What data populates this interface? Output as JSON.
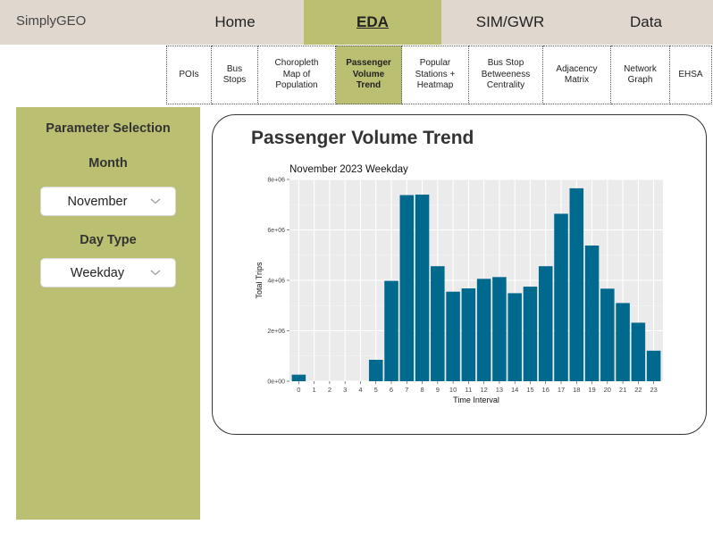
{
  "app": {
    "brand": "SimplyGEO"
  },
  "nav": {
    "items": [
      {
        "label": "Home",
        "active": false
      },
      {
        "label": "EDA",
        "active": true
      },
      {
        "label": "SIM/GWR",
        "active": false
      },
      {
        "label": "Data",
        "active": false
      }
    ]
  },
  "subtabs": [
    {
      "label": "POIs",
      "active": false
    },
    {
      "label": "Bus\nStops",
      "active": false
    },
    {
      "label": "Choropleth\nMap of\nPopulation",
      "active": false
    },
    {
      "label": "Passenger\nVolume\nTrend",
      "active": true
    },
    {
      "label": "Popular\nStations +\nHeatmap",
      "active": false
    },
    {
      "label": "Bus Stop\nBetweeness\nCentrality",
      "active": false
    },
    {
      "label": "Adjacency\nMatrix",
      "active": false
    },
    {
      "label": "Network\nGraph",
      "active": false
    },
    {
      "label": "EHSA",
      "active": false
    }
  ],
  "sidebar": {
    "heading": "Parameter Selection",
    "month": {
      "label": "Month",
      "value": "November"
    },
    "day_type": {
      "label": "Day Type",
      "value": "Weekday"
    }
  },
  "panel": {
    "title": "Passenger Volume Trend"
  },
  "chart_data": {
    "type": "bar",
    "title": "November 2023 Weekday",
    "xlabel": "Time Interval",
    "ylabel": "Total Trips",
    "ylim": [
      0,
      8000000
    ],
    "yticks": [
      0,
      2000000,
      4000000,
      6000000,
      8000000
    ],
    "ytick_labels": [
      "0e+00",
      "2e+06",
      "4e+06",
      "6e+06",
      "8e+06"
    ],
    "categories": [
      "0",
      "1",
      "2",
      "3",
      "4",
      "5",
      "6",
      "7",
      "8",
      "9",
      "10",
      "11",
      "12",
      "13",
      "14",
      "15",
      "16",
      "17",
      "18",
      "19",
      "20",
      "21",
      "22",
      "23"
    ],
    "values": [
      260000,
      0,
      0,
      0,
      0,
      850000,
      3980000,
      7380000,
      7400000,
      4560000,
      3550000,
      3680000,
      4060000,
      4130000,
      3490000,
      3750000,
      4560000,
      6640000,
      7650000,
      5380000,
      3670000,
      3100000,
      2320000,
      1210000
    ],
    "bar_color": "#006a8e",
    "panel_background": "#ebebeb",
    "grid": true,
    "legend": "none"
  },
  "colors": {
    "accent": "#bbbf72",
    "topbar": "#e0d8cf"
  }
}
